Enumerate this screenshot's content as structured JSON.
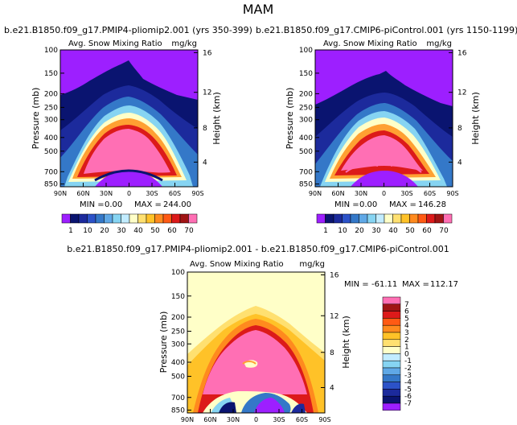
{
  "page_title": "MAM",
  "colors": {
    "bg_purple": "#9d1fff",
    "navy": "#0a1470",
    "pink": "#ff6fb4",
    "cream": "#ffffc8"
  },
  "chart_data": [
    {
      "type": "contour",
      "title": "b.e21.B1850.f09_g17.PMIP4-pliomip2.001 (yrs 350-399)",
      "subtitle_left": "Avg. Snow Mixing Ratio",
      "subtitle_right": "mg/kg",
      "ylabel": "Pressure (mb)",
      "ylabel_right": "Height (km)",
      "y_ticks": [
        "100",
        "150",
        "200",
        "250",
        "300",
        "400",
        "500",
        "700",
        "850"
      ],
      "y_ticks_right": [
        "16",
        "12",
        "8",
        "4"
      ],
      "x_ticks": [
        "90N",
        "60N",
        "30N",
        "0",
        "30S",
        "60S",
        "90S"
      ],
      "stats": {
        "min_label": "MIN =",
        "min": "0.00",
        "max_label": "MAX =",
        "max": "244.00"
      },
      "colorbar_labels": [
        "1",
        "10",
        "20",
        "30",
        "40",
        "50",
        "60",
        "70"
      ]
    },
    {
      "type": "contour",
      "title": "b.e21.B1850.f09_g17.CMIP6-piControl.001 (yrs 1150-1199)",
      "subtitle_left": "Avg. Snow Mixing Ratio",
      "subtitle_right": "mg/kg",
      "ylabel": "Pressure (mb)",
      "ylabel_right": "Height (km)",
      "y_ticks": [
        "100",
        "150",
        "200",
        "250",
        "300",
        "400",
        "500",
        "700",
        "850"
      ],
      "y_ticks_right": [
        "16",
        "12",
        "8",
        "4"
      ],
      "x_ticks": [
        "90N",
        "60N",
        "30N",
        "0",
        "30S",
        "60S",
        "90S"
      ],
      "stats": {
        "min_label": "MIN =",
        "min": "0.00",
        "max_label": "MAX =",
        "max": "146.28"
      },
      "colorbar_labels": [
        "1",
        "10",
        "20",
        "30",
        "40",
        "50",
        "60",
        "70"
      ]
    },
    {
      "type": "contour",
      "title": "b.e21.B1850.f09_g17.PMIP4-pliomip2.001 - b.e21.B1850.f09_g17.CMIP6-piControl.001",
      "subtitle_left": "Avg. Snow Mixing Ratio",
      "subtitle_right": "mg/kg",
      "ylabel": "Pressure (mb)",
      "ylabel_right": "Height (km)",
      "y_ticks": [
        "100",
        "150",
        "200",
        "250",
        "300",
        "400",
        "500",
        "700",
        "850"
      ],
      "y_ticks_right": [
        "16",
        "12",
        "8",
        "4"
      ],
      "x_ticks": [
        "90N",
        "60N",
        "30N",
        "0",
        "30S",
        "60S",
        "90S"
      ],
      "stats": {
        "min_label": "MIN =",
        "min": "-61.11",
        "max_label": "MAX =",
        "max": "112.17"
      },
      "colorbar_labels": [
        "7",
        "6",
        "5",
        "4",
        "3",
        "2",
        "1",
        "0",
        "-1",
        "-2",
        "-3",
        "-4",
        "-5",
        "-6",
        "-7"
      ]
    }
  ]
}
